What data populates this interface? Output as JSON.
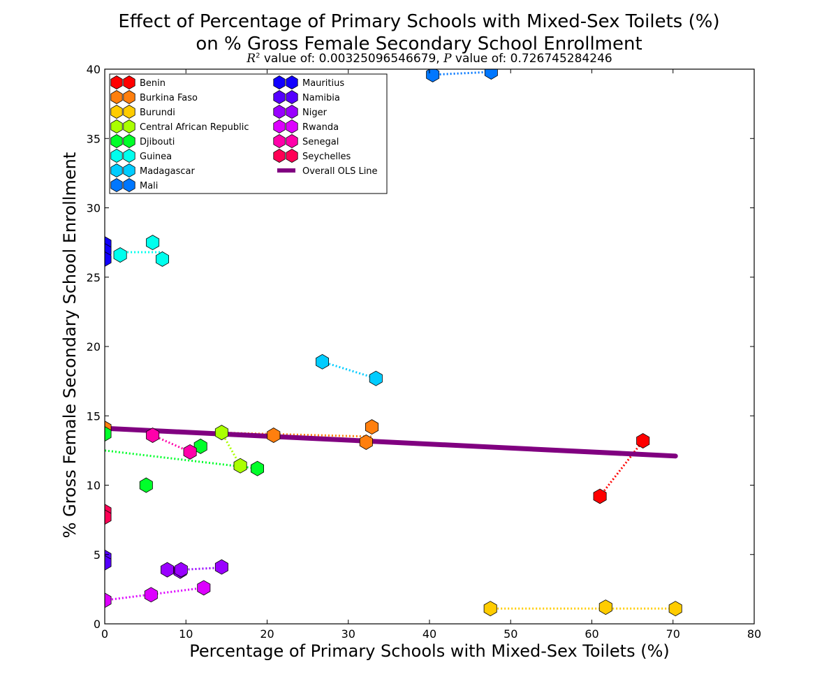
{
  "chart_data": {
    "type": "scatter",
    "title": [
      "Effect of Percentage of Primary Schools with Mixed-Sex Toilets (%)",
      "on % Gross Female Secondary School Enrollment"
    ],
    "subtitle": {
      "r2_symbol": "R",
      "r2_sup": "2",
      "r2_text": " value of: 0.00325096546679, ",
      "p_symbol": "P",
      "p_text": " value of: 0.726745284246"
    },
    "xlabel": "Percentage of Primary Schools with Mixed-Sex Toilets (%)",
    "ylabel": "% Gross Female Secondary School Enrollment",
    "xlim": [
      0,
      80
    ],
    "ylim": [
      0,
      40
    ],
    "xticks": [
      0,
      10,
      20,
      30,
      40,
      50,
      60,
      70,
      80
    ],
    "yticks": [
      0,
      5,
      10,
      15,
      20,
      25,
      30,
      35,
      40
    ],
    "legend_position": "top-left",
    "series": [
      {
        "name": "Benin",
        "color": "#ff0000",
        "points": [
          [
            61,
            9.2
          ],
          [
            66.3,
            13.2
          ]
        ],
        "fit": [
          [
            61,
            9.2
          ],
          [
            66.3,
            13.2
          ]
        ]
      },
      {
        "name": "Burkina Faso",
        "color": "#ff7f0e",
        "points": [
          [
            0,
            14.1
          ],
          [
            20.8,
            13.6
          ],
          [
            32.2,
            13.1
          ],
          [
            32.9,
            14.2
          ]
        ],
        "fit": [
          [
            0,
            14.0
          ],
          [
            33,
            13.5
          ]
        ]
      },
      {
        "name": "Burundi",
        "color": "#ffcc00",
        "points": [
          [
            47.5,
            1.1
          ],
          [
            61.7,
            1.2
          ],
          [
            70.3,
            1.1
          ]
        ],
        "fit": [
          [
            47.5,
            1.1
          ],
          [
            70.3,
            1.1
          ]
        ]
      },
      {
        "name": "Central African Republic",
        "color": "#aaff00",
        "points": [
          [
            14.4,
            13.8
          ],
          [
            16.7,
            11.4
          ]
        ],
        "fit": [
          [
            14.4,
            13.8
          ],
          [
            16.7,
            11.4
          ]
        ]
      },
      {
        "name": "Djibouti",
        "color": "#00ff2a",
        "points": [
          [
            0,
            13.7
          ],
          [
            5.1,
            10.0
          ],
          [
            11.8,
            12.8
          ],
          [
            18.8,
            11.2
          ]
        ],
        "fit": [
          [
            0,
            12.5
          ],
          [
            18.8,
            11.2
          ]
        ]
      },
      {
        "name": "Guinea",
        "color": "#00ffee",
        "points": [
          [
            1.9,
            26.6
          ],
          [
            5.9,
            27.5
          ],
          [
            7.1,
            26.3
          ]
        ],
        "fit": [
          [
            1.9,
            26.8
          ],
          [
            7.1,
            26.8
          ]
        ]
      },
      {
        "name": "Madagascar",
        "color": "#00ccff",
        "points": [
          [
            26.8,
            18.9
          ],
          [
            33.4,
            17.7
          ]
        ],
        "fit": [
          [
            26.8,
            18.9
          ],
          [
            33.4,
            17.7
          ]
        ]
      },
      {
        "name": "Mali",
        "color": "#0077ff",
        "points": [
          [
            40.4,
            39.6
          ],
          [
            47.6,
            39.8
          ]
        ],
        "fit": [
          [
            40.4,
            39.6
          ],
          [
            47.6,
            39.8
          ]
        ]
      },
      {
        "name": "Mauritius",
        "color": "#1100ff",
        "points": [
          [
            0,
            27.4
          ],
          [
            0,
            26.9
          ],
          [
            0,
            26.3
          ]
        ],
        "fit": []
      },
      {
        "name": "Namibia",
        "color": "#5500ff",
        "points": [
          [
            0,
            4.8
          ],
          [
            0,
            4.4
          ]
        ],
        "fit": []
      },
      {
        "name": "Niger",
        "color": "#9900ff",
        "points": [
          [
            7.7,
            3.9
          ],
          [
            9.3,
            3.8
          ],
          [
            9.4,
            3.9
          ],
          [
            14.4,
            4.1
          ]
        ],
        "fit": [
          [
            7.7,
            3.85
          ],
          [
            14.4,
            4.05
          ]
        ]
      },
      {
        "name": "Rwanda",
        "color": "#dd00ff",
        "points": [
          [
            0,
            1.7
          ],
          [
            5.7,
            2.1
          ],
          [
            12.2,
            2.6
          ]
        ],
        "fit": [
          [
            0,
            1.7
          ],
          [
            12.2,
            2.6
          ]
        ]
      },
      {
        "name": "Senegal",
        "color": "#ff00aa",
        "points": [
          [
            5.9,
            13.6
          ],
          [
            10.5,
            12.4
          ]
        ],
        "fit": [
          [
            5.9,
            13.6
          ],
          [
            10.5,
            12.4
          ]
        ]
      },
      {
        "name": "Seychelles",
        "color": "#ff0055",
        "points": [
          [
            0,
            8.1
          ],
          [
            0,
            7.7
          ]
        ],
        "fit": []
      }
    ],
    "ols_line": {
      "name": "Overall OLS Line",
      "color": "#800080",
      "points": [
        [
          0,
          14.1
        ],
        [
          70.3,
          12.1
        ]
      ]
    }
  }
}
